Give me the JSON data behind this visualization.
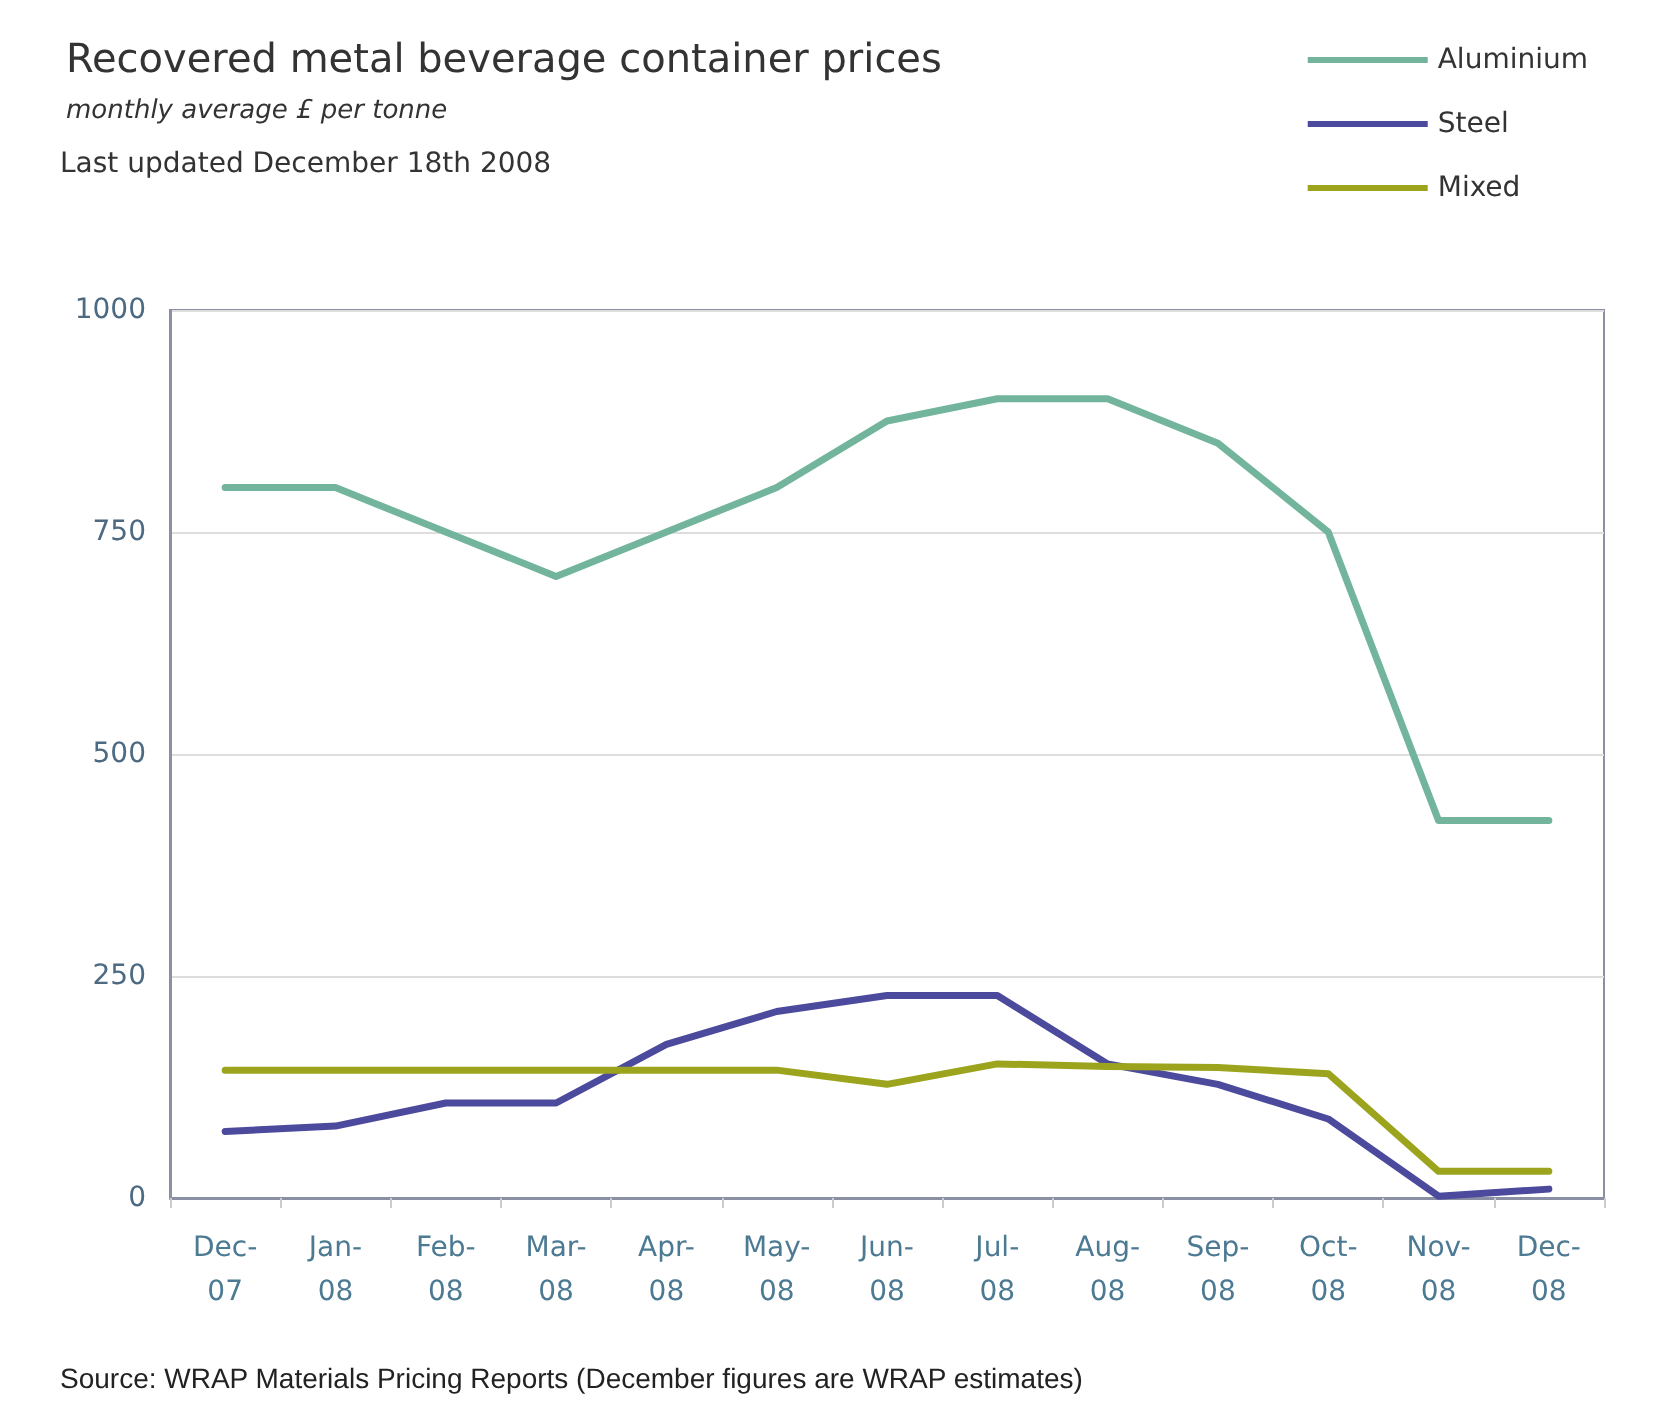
{
  "chart_data": {
    "type": "line",
    "title": "Recovered metal beverage container prices",
    "subtitle": "monthly average £ per tonne",
    "annotations": [
      "Last updated December 18th 2008",
      "Source: WRAP Materials Pricing Reports (December figures are WRAP estimates)"
    ],
    "categories": [
      "Dec-07",
      "Jan-08",
      "Feb-08",
      "Mar-08",
      "Apr-08",
      "May-08",
      "Jun-08",
      "Jul-08",
      "Aug-08",
      "Sep-08",
      "Oct-08",
      "Nov-08",
      "Dec-08"
    ],
    "series": [
      {
        "name": "Aluminium",
        "color": "#72b59c",
        "values": [
          800,
          800,
          750,
          700,
          750,
          800,
          875,
          900,
          900,
          850,
          750,
          425,
          425
        ]
      },
      {
        "name": "Steel",
        "color": "#4c4a9c",
        "values": [
          75,
          81,
          107,
          107,
          173,
          210,
          228,
          228,
          151,
          128,
          89,
          2,
          10
        ]
      },
      {
        "name": "Mixed",
        "color": "#9ba41c",
        "values": [
          144,
          144,
          144,
          144,
          144,
          144,
          128,
          151,
          148,
          147,
          140,
          30,
          30
        ]
      }
    ],
    "ylim": [
      0,
      1000
    ],
    "yticks": [
      0,
      250,
      500,
      750,
      1000
    ],
    "grid": "y",
    "legend": "top right",
    "marker": "none",
    "line_style": "solid"
  }
}
